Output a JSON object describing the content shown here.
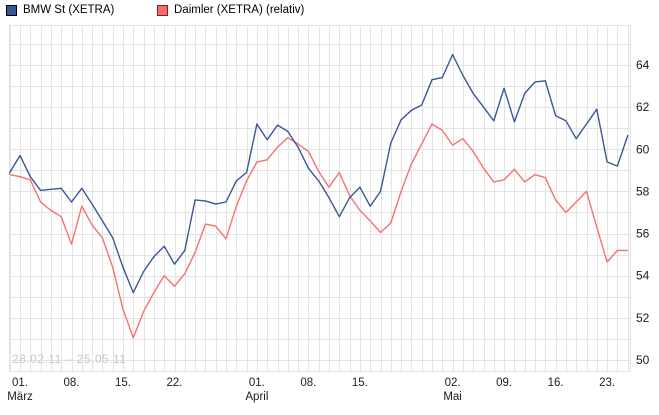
{
  "legend": {
    "items": [
      {
        "label": "BMW St (XETRA)",
        "color": "#3A5795",
        "border": "#000000"
      },
      {
        "label": "Daimler (XETRA) (relativ)",
        "color": "#F96B6B",
        "border": "#8B1A1A"
      }
    ]
  },
  "watermark": "28.02.11 – 25.05.11",
  "colors": {
    "grid": "#e3e3e3",
    "axis_text": "#1c1c1c",
    "background": "#ffffff",
    "bmw_line": "#3A5795",
    "daimler_line": "#F97070",
    "watermark_text": "#c8c8c8"
  },
  "chart_data": {
    "type": "line",
    "title": "",
    "xlabel": "",
    "ylabel": "",
    "ylim": [
      49.5,
      65.9
    ],
    "grid": true,
    "legend_position": "top-left",
    "date_range": "28.02.11 - 25.05.11",
    "x": [
      "28.02",
      "01.03",
      "02.03",
      "03.03",
      "04.03",
      "07.03",
      "08.03",
      "09.03",
      "10.03",
      "11.03",
      "14.03",
      "15.03",
      "16.03",
      "17.03",
      "18.03",
      "21.03",
      "22.03",
      "23.03",
      "24.03",
      "25.03",
      "28.03",
      "29.03",
      "30.03",
      "31.03",
      "01.04",
      "04.04",
      "05.04",
      "06.04",
      "07.04",
      "08.04",
      "11.04",
      "12.04",
      "13.04",
      "14.04",
      "15.04",
      "18.04",
      "19.04",
      "20.04",
      "21.04",
      "26.04",
      "27.04",
      "28.04",
      "29.04",
      "02.05",
      "03.05",
      "04.05",
      "05.05",
      "06.05",
      "09.05",
      "10.05",
      "11.05",
      "12.05",
      "13.05",
      "16.05",
      "17.05",
      "18.05",
      "19.05",
      "20.05",
      "23.05",
      "24.05",
      "25.05"
    ],
    "series": [
      {
        "name": "BMW St (XETRA)",
        "color": "#3A5795",
        "values": [
          58.9,
          59.7,
          58.7,
          58.05,
          58.1,
          58.15,
          57.5,
          58.15,
          57.4,
          56.6,
          55.8,
          54.4,
          53.2,
          54.2,
          54.9,
          55.4,
          54.55,
          55.2,
          57.6,
          57.55,
          57.4,
          57.5,
          58.5,
          58.9,
          61.2,
          60.45,
          61.15,
          60.85,
          60.1,
          59.1,
          58.5,
          57.7,
          56.8,
          57.7,
          58.2,
          57.3,
          58.0,
          60.3,
          61.4,
          61.85,
          62.1,
          63.3,
          63.4,
          64.5,
          63.5,
          62.65,
          62.0,
          61.35,
          62.9,
          61.3,
          62.65,
          63.2,
          63.25,
          61.6,
          61.35,
          60.5,
          61.2,
          61.9,
          59.4,
          59.2,
          60.65
        ]
      },
      {
        "name": "Daimler (XETRA) (relativ)",
        "color": "#F97070",
        "values": [
          58.8,
          58.7,
          58.55,
          57.5,
          57.1,
          56.8,
          55.5,
          57.3,
          56.4,
          55.8,
          54.4,
          52.4,
          51.05,
          52.3,
          53.2,
          54.0,
          53.5,
          54.1,
          55.1,
          56.45,
          56.35,
          55.75,
          57.3,
          58.5,
          59.4,
          59.5,
          60.1,
          60.55,
          60.25,
          59.9,
          58.95,
          58.2,
          58.9,
          57.8,
          57.1,
          56.6,
          56.05,
          56.5,
          58.0,
          59.3,
          60.25,
          61.2,
          60.9,
          60.2,
          60.5,
          59.9,
          59.1,
          58.45,
          58.55,
          59.05,
          58.45,
          58.8,
          58.65,
          57.6,
          57.0,
          57.5,
          58.0,
          56.3,
          54.65,
          55.2,
          55.2
        ]
      }
    ],
    "x_ticks": [
      {
        "i": 1,
        "label": "01.",
        "month": "März"
      },
      {
        "i": 6,
        "label": "08."
      },
      {
        "i": 11,
        "label": "15."
      },
      {
        "i": 16,
        "label": "22."
      },
      {
        "i": 24,
        "label": "01.",
        "month": "April"
      },
      {
        "i": 29,
        "label": "08."
      },
      {
        "i": 34,
        "label": "15."
      },
      {
        "i": 43,
        "label": "02.",
        "month": "Mai"
      },
      {
        "i": 48,
        "label": "09."
      },
      {
        "i": 53,
        "label": "16."
      },
      {
        "i": 58,
        "label": "23."
      }
    ],
    "y_tick_labels": [
      50,
      52,
      54,
      56,
      58,
      60,
      62,
      64
    ],
    "y_minor_grid_step": 1
  }
}
